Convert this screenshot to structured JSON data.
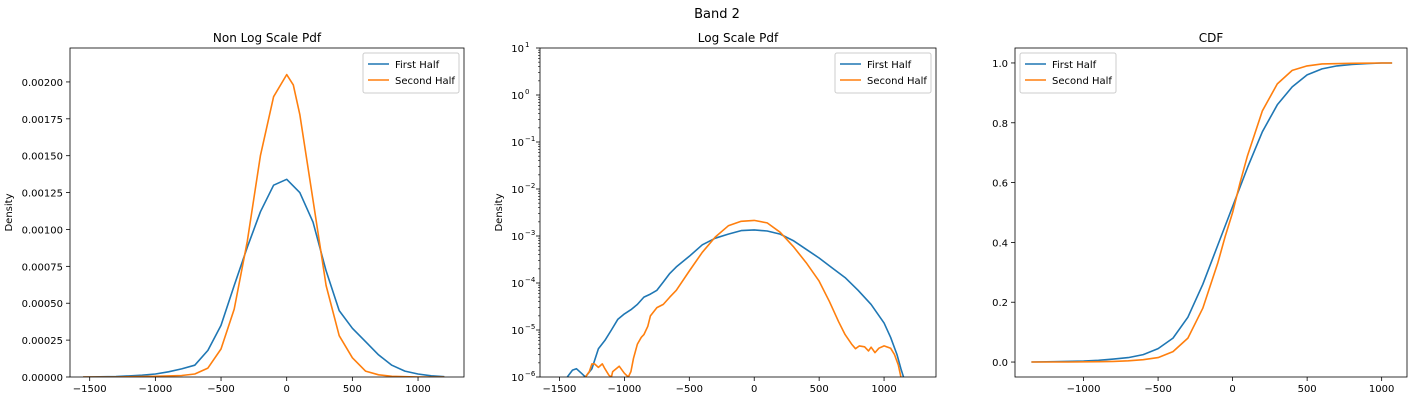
{
  "figure": {
    "suptitle": "Band 2"
  },
  "colors": {
    "first": "#1f77b4",
    "second": "#ff7f0e",
    "frame": "#000000",
    "legend_border": "#cccccc"
  },
  "chart_data": [
    {
      "type": "line",
      "title": "Non Log Scale Pdf",
      "xlabel": "",
      "ylabel": "Density",
      "xlim": [
        -1650,
        1350
      ],
      "ylim": [
        0,
        0.00223
      ],
      "yscale": "linear",
      "xticks": [
        -1500,
        -1000,
        -500,
        0,
        500,
        1000
      ],
      "xtick_labels": [
        "−1500",
        "−1000",
        "−500",
        "0",
        "500",
        "1000"
      ],
      "yticks": [
        0,
        0.00025,
        0.0005,
        0.00075,
        0.001,
        0.00125,
        0.0015,
        0.00175,
        0.002
      ],
      "ytick_labels": [
        "0.00000",
        "0.00025",
        "0.00050",
        "0.00075",
        "0.00100",
        "0.00125",
        "0.00150",
        "0.00175",
        "0.00200"
      ],
      "legend": "top-right",
      "grid": false,
      "series": [
        {
          "name": "First Half",
          "x": [
            -1550,
            -1300,
            -1100,
            -1000,
            -900,
            -800,
            -700,
            -600,
            -500,
            -400,
            -300,
            -200,
            -100,
            0,
            100,
            200,
            300,
            400,
            500,
            600,
            700,
            800,
            900,
            1000,
            1100,
            1200
          ],
          "y": [
            0.0,
            3e-06,
            1.2e-05,
            2e-05,
            3.5e-05,
            5.5e-05,
            8e-05,
            0.00018,
            0.00035,
            0.00062,
            0.00088,
            0.00112,
            0.0013,
            0.00134,
            0.00125,
            0.00105,
            0.00072,
            0.00045,
            0.00033,
            0.00024,
            0.00015,
            8e-05,
            4e-05,
            2e-05,
            8e-06,
            2e-06
          ]
        },
        {
          "name": "Second Half",
          "x": [
            -1550,
            -1300,
            -1000,
            -800,
            -700,
            -600,
            -500,
            -400,
            -300,
            -200,
            -100,
            0,
            50,
            100,
            200,
            300,
            400,
            500,
            600,
            700,
            800,
            1000,
            1200
          ],
          "y": [
            0.0,
            0.0,
            5e-06,
            1e-05,
            2e-05,
            6e-05,
            0.00019,
            0.00046,
            0.00092,
            0.0015,
            0.0019,
            0.00205,
            0.00198,
            0.00178,
            0.0012,
            0.00062,
            0.00028,
            0.00013,
            4e-05,
            1.5e-05,
            5e-06,
            0.0,
            0.0
          ]
        }
      ]
    },
    {
      "type": "line",
      "title": "Log Scale Pdf",
      "xlabel": "",
      "ylabel": "Density",
      "xlim": [
        -1650,
        1400
      ],
      "ylim": [
        1e-06,
        10
      ],
      "yscale": "log",
      "xticks": [
        -1500,
        -1000,
        -500,
        0,
        500,
        1000
      ],
      "xtick_labels": [
        "−1500",
        "−1000",
        "−500",
        "0",
        "500",
        "1000"
      ],
      "yticks": [
        -6,
        -5,
        -4,
        -3,
        -2,
        -1,
        0,
        1
      ],
      "ytick_labels": [
        "10",
        "10",
        "10",
        "10",
        "10",
        "10",
        "10",
        "10"
      ],
      "ytick_exponents": [
        "−6",
        "−5",
        "−4",
        "−3",
        "−2",
        "−1",
        "0",
        "1"
      ],
      "legend": "top-right",
      "grid": false,
      "series": [
        {
          "name": "First Half",
          "x": [
            -1440,
            -1400,
            -1370,
            -1330,
            -1300,
            -1250,
            -1200,
            -1150,
            -1100,
            -1050,
            -1000,
            -950,
            -900,
            -850,
            -800,
            -750,
            -700,
            -650,
            -600,
            -500,
            -400,
            -300,
            -200,
            -100,
            0,
            100,
            200,
            300,
            400,
            500,
            600,
            700,
            800,
            900,
            1000,
            1050,
            1100,
            1130,
            1150
          ],
          "y": [
            1e-06,
            1.4e-06,
            1.5e-06,
            1.2e-06,
            1e-06,
            1.5e-06,
            4e-06,
            6e-06,
            1e-05,
            1.7e-05,
            2.2e-05,
            2.7e-05,
            3.5e-05,
            5e-05,
            5.8e-05,
            7e-05,
            0.000105,
            0.00016,
            0.00022,
            0.00037,
            0.00065,
            0.0009,
            0.0011,
            0.0013,
            0.00135,
            0.00128,
            0.0011,
            0.0008,
            0.00052,
            0.00034,
            0.00021,
            0.00013,
            7e-05,
            3.5e-05,
            1.4e-05,
            7e-06,
            3e-06,
            1.5e-06,
            1e-06
          ]
        },
        {
          "name": "Second Half",
          "x": [
            -1300,
            -1270,
            -1250,
            -1230,
            -1200,
            -1170,
            -1150,
            -1120,
            -1100,
            -1090,
            -1040,
            -1000,
            -970,
            -950,
            -930,
            -900,
            -870,
            -850,
            -820,
            -800,
            -750,
            -700,
            -650,
            -600,
            -500,
            -400,
            -300,
            -200,
            -100,
            0,
            100,
            200,
            300,
            400,
            500,
            580,
            650,
            700,
            750,
            780,
            810,
            850,
            880,
            900,
            930,
            960,
            1000,
            1050,
            1080,
            1110,
            1130
          ],
          "y": [
            1e-06,
            1.3e-06,
            1.9e-06,
            1.9e-06,
            1.6e-06,
            1.9e-06,
            1.5e-06,
            1.1e-06,
            1e-06,
            1.3e-06,
            1.7e-06,
            1.2e-06,
            1e-06,
            1.3e-06,
            2.5e-06,
            5e-06,
            7e-06,
            8e-06,
            1.2e-05,
            2e-05,
            3e-05,
            3.5e-05,
            5e-05,
            7e-05,
            0.00018,
            0.00045,
            0.00095,
            0.00165,
            0.00205,
            0.00215,
            0.0019,
            0.0012,
            0.0006,
            0.00027,
            0.00011,
            4e-05,
            1.5e-05,
            8e-06,
            5e-06,
            4e-06,
            4.6e-06,
            4.4e-06,
            3.6e-06,
            4.3e-06,
            3.3e-06,
            4.1e-06,
            4.6e-06,
            4.1e-06,
            3e-06,
            1.8e-06,
            1e-06
          ]
        }
      ]
    },
    {
      "type": "line",
      "title": "CDF",
      "xlabel": "",
      "ylabel": "",
      "xlim": [
        -1460,
        1170
      ],
      "ylim": [
        -0.05,
        1.05
      ],
      "yscale": "linear",
      "xticks": [
        -1000,
        -500,
        0,
        500,
        1000
      ],
      "xtick_labels": [
        "−1000",
        "−500",
        "0",
        "500",
        "1000"
      ],
      "yticks": [
        0,
        0.2,
        0.4,
        0.6,
        0.8,
        1.0
      ],
      "ytick_labels": [
        "0.0",
        "0.2",
        "0.4",
        "0.6",
        "0.8",
        "1.0"
      ],
      "legend": "top-left",
      "grid": false,
      "series": [
        {
          "name": "First Half",
          "x": [
            -1350,
            -1200,
            -1000,
            -900,
            -800,
            -700,
            -600,
            -500,
            -400,
            -300,
            -200,
            -100,
            0,
            100,
            200,
            300,
            400,
            500,
            600,
            700,
            800,
            900,
            1000,
            1070
          ],
          "y": [
            0.0,
            0.001,
            0.003,
            0.006,
            0.01,
            0.015,
            0.025,
            0.045,
            0.08,
            0.15,
            0.26,
            0.39,
            0.52,
            0.65,
            0.77,
            0.86,
            0.92,
            0.96,
            0.98,
            0.99,
            0.995,
            0.998,
            1.0,
            1.0
          ]
        },
        {
          "name": "Second Half",
          "x": [
            -1350,
            -1100,
            -900,
            -800,
            -700,
            -600,
            -500,
            -400,
            -300,
            -200,
            -100,
            -50,
            0,
            50,
            100,
            200,
            300,
            400,
            500,
            600,
            800,
            1000,
            1070
          ],
          "y": [
            0.0,
            0.0,
            0.001,
            0.002,
            0.004,
            0.008,
            0.015,
            0.035,
            0.08,
            0.18,
            0.33,
            0.42,
            0.5,
            0.6,
            0.69,
            0.84,
            0.93,
            0.975,
            0.99,
            0.997,
            0.999,
            1.0,
            1.0
          ]
        }
      ]
    }
  ]
}
